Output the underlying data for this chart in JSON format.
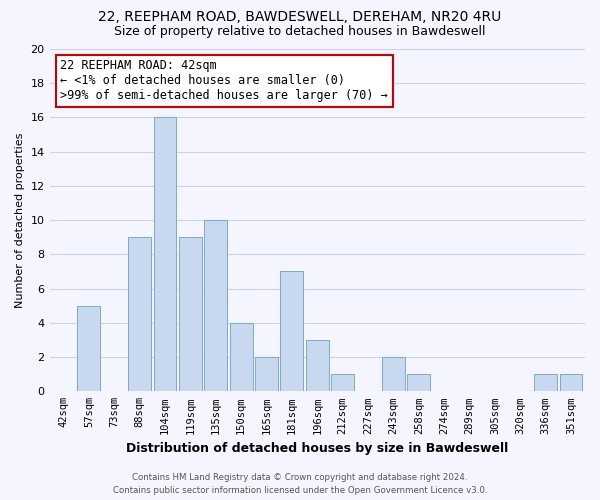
{
  "title_line1": "22, REEPHAM ROAD, BAWDESWELL, DEREHAM, NR20 4RU",
  "title_line2": "Size of property relative to detached houses in Bawdeswell",
  "xlabel": "Distribution of detached houses by size in Bawdeswell",
  "ylabel": "Number of detached properties",
  "categories": [
    "42sqm",
    "57sqm",
    "73sqm",
    "88sqm",
    "104sqm",
    "119sqm",
    "135sqm",
    "150sqm",
    "165sqm",
    "181sqm",
    "196sqm",
    "212sqm",
    "227sqm",
    "243sqm",
    "258sqm",
    "274sqm",
    "289sqm",
    "305sqm",
    "320sqm",
    "336sqm",
    "351sqm"
  ],
  "values": [
    0,
    5,
    0,
    9,
    16,
    9,
    10,
    4,
    2,
    7,
    3,
    1,
    0,
    2,
    1,
    0,
    0,
    0,
    0,
    1,
    1
  ],
  "bar_color": "#c8d8ee",
  "bar_edge_color": "#7aabcf",
  "annotation_title": "22 REEPHAM ROAD: 42sqm",
  "annotation_line2": "← <1% of detached houses are smaller (0)",
  "annotation_line3": ">99% of semi-detached houses are larger (70) →",
  "annotation_box_facecolor": "#ffffff",
  "annotation_box_edgecolor": "#cc0000",
  "ylim": [
    0,
    20
  ],
  "yticks": [
    0,
    2,
    4,
    6,
    8,
    10,
    12,
    14,
    16,
    18,
    20
  ],
  "footer_line1": "Contains HM Land Registry data © Crown copyright and database right 2024.",
  "footer_line2": "Contains public sector information licensed under the Open Government Licence v3.0.",
  "bg_color": "#f5f5ff",
  "grid_color": "#c8d4e8",
  "title1_fontsize": 10,
  "title2_fontsize": 9,
  "ylabel_fontsize": 8,
  "xlabel_fontsize": 9,
  "tick_fontsize": 7.5,
  "ann_fontsize": 8.5
}
